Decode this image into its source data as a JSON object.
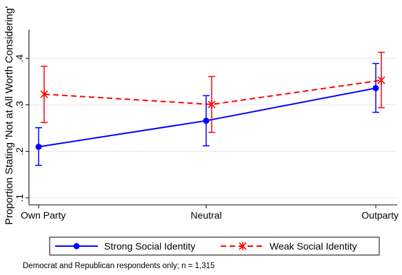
{
  "chart_data": {
    "type": "line",
    "title": "",
    "xlabel": "",
    "ylabel": "Proportion Stating 'Not at All Worth Considering'",
    "categories": [
      "Own Party",
      "Neutral",
      "Outparty"
    ],
    "y_ticks": [
      ".1",
      ".2",
      ".3",
      ".4"
    ],
    "ylim": [
      0.085,
      0.462
    ],
    "grid": true,
    "legend_position": "bottom",
    "series": [
      {
        "name": "Strong Social Identity",
        "color": "#0000ff",
        "line_style": "solid",
        "marker": "circle",
        "values": [
          0.21,
          0.266,
          0.336
        ],
        "ci_low": [
          0.17,
          0.212,
          0.284
        ],
        "ci_high": [
          0.251,
          0.32,
          0.389
        ]
      },
      {
        "name": "Weak Social Identity",
        "color": "#ff0000",
        "line_style": "dashed",
        "marker": "x",
        "values": [
          0.323,
          0.301,
          0.353
        ],
        "ci_low": [
          0.262,
          0.241,
          0.294
        ],
        "ci_high": [
          0.383,
          0.361,
          0.413
        ]
      }
    ]
  },
  "note": "Democrat and Republican respondents only; n = 1,315"
}
